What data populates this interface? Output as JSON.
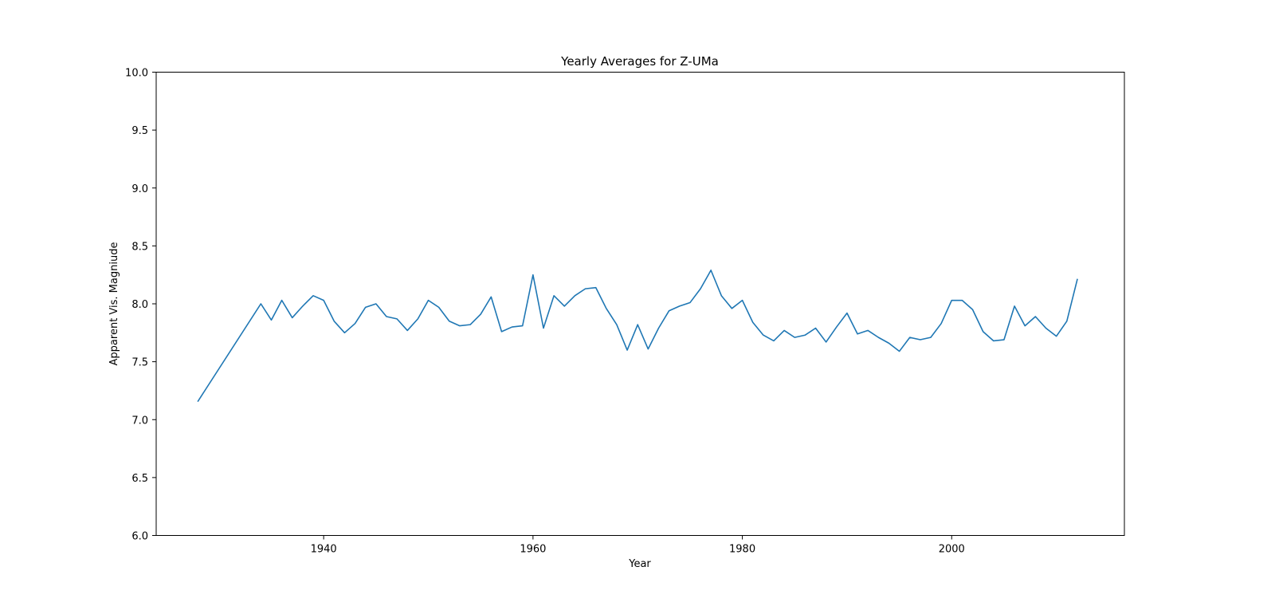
{
  "chart_data": {
    "type": "line",
    "title": "Yearly Averages for Z-UMa",
    "xlabel": "Year",
    "ylabel": "Apparent Vis. Magniude",
    "xlim": [
      1924,
      2016.5
    ],
    "ylim": [
      6.0,
      10.0
    ],
    "xticks": [
      1940,
      1960,
      1980,
      2000
    ],
    "yticks": [
      6.0,
      6.5,
      7.0,
      7.5,
      8.0,
      8.5,
      9.0,
      9.5,
      10.0
    ],
    "grid": false,
    "color": "#1f77b4",
    "series": [
      {
        "x": [
          1928,
          1934,
          1935,
          1936,
          1937,
          1938,
          1939,
          1940,
          1941,
          1942,
          1943,
          1944,
          1945,
          1946,
          1947,
          1948,
          1949,
          1950,
          1951,
          1952,
          1953,
          1954,
          1955,
          1956,
          1957,
          1958,
          1959,
          1960,
          1961,
          1962,
          1963,
          1964,
          1965,
          1966,
          1967,
          1968,
          1969,
          1970,
          1971,
          1972,
          1973,
          1974,
          1975,
          1976,
          1977,
          1978,
          1979,
          1980,
          1981,
          1982,
          1983,
          1984,
          1985,
          1986,
          1987,
          1988,
          1989,
          1990,
          1991,
          1992,
          1993,
          1994,
          1995,
          1996,
          1997,
          1998,
          1999,
          2000,
          2001,
          2002,
          2003,
          2004,
          2005,
          2006,
          2007,
          2008,
          2009,
          2010,
          2011,
          2012
        ],
        "y": [
          7.16,
          8.0,
          7.86,
          8.03,
          7.88,
          7.98,
          8.07,
          8.03,
          7.85,
          7.75,
          7.83,
          7.97,
          8.0,
          7.89,
          7.87,
          7.77,
          7.87,
          8.03,
          7.97,
          7.85,
          7.81,
          7.82,
          7.91,
          8.06,
          7.76,
          7.8,
          7.81,
          8.25,
          7.79,
          8.07,
          7.98,
          8.07,
          8.13,
          8.14,
          7.96,
          7.82,
          7.6,
          7.82,
          7.61,
          7.79,
          7.94,
          7.98,
          8.01,
          8.13,
          8.29,
          8.07,
          7.96,
          8.03,
          7.84,
          7.73,
          7.68,
          7.77,
          7.71,
          7.73,
          7.79,
          7.67,
          7.8,
          7.92,
          7.74,
          7.77,
          7.71,
          7.66,
          7.59,
          7.71,
          7.69,
          7.71,
          7.83,
          8.03,
          8.03,
          7.95,
          7.76,
          7.68,
          7.69,
          7.98,
          7.81,
          7.89,
          7.79,
          7.72,
          7.85,
          8.21
        ]
      }
    ]
  }
}
